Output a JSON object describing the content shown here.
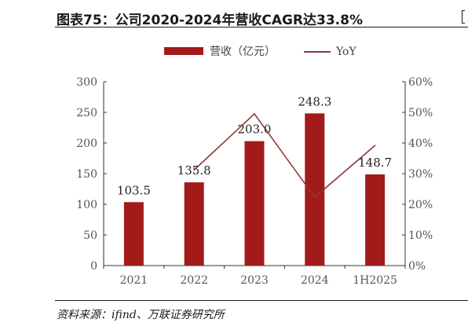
{
  "title": "图表75：公司2020-2024年营收CAGR达33.8%",
  "source": "资料来源：ifind、万联证券研究所",
  "chart_data": {
    "type": "bar",
    "categories": [
      "2021",
      "2022",
      "2023",
      "2024",
      "1H2025"
    ],
    "series": [
      {
        "name": "营收（亿元）",
        "type": "bar",
        "axis": "left",
        "color": "#a31a1a",
        "values": [
          103.5,
          135.8,
          203.0,
          248.3,
          148.7
        ],
        "labels": [
          "103.5",
          "135.8",
          "203.0",
          "248.3",
          "148.7"
        ]
      },
      {
        "name": "YoY",
        "type": "line",
        "axis": "right",
        "color": "#8b3a3a",
        "values": [
          null,
          0.312,
          0.495,
          0.223,
          0.392
        ]
      }
    ],
    "y_left": {
      "min": 0,
      "max": 300,
      "ticks": [
        0,
        50,
        100,
        150,
        200,
        250,
        300
      ]
    },
    "y_right": {
      "min": 0,
      "max": 0.6,
      "ticks": [
        "0%",
        "10%",
        "20%",
        "30%",
        "40%",
        "50%",
        "60%"
      ]
    },
    "legend_position": "top",
    "grid": false
  }
}
